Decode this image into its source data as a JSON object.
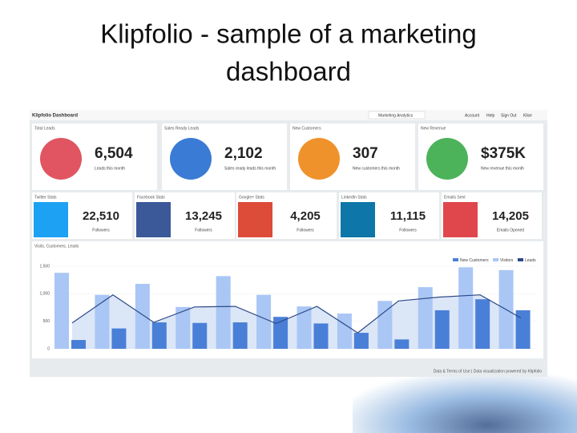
{
  "slide_title": [
    "Klipfolio - sample of a marketing",
    "dashboard"
  ],
  "topbar": {
    "logo": "Klipfolio Dashboard",
    "tab": "Marketing Analytics",
    "links": [
      "Account",
      "Help",
      "Sign Out",
      "Klise"
    ]
  },
  "kpis": [
    {
      "title": "Total Leads",
      "value": "6,504",
      "sub": "Leads this month"
    },
    {
      "title": "Sales Ready Leads",
      "value": "2,102",
      "sub": "Sales ready leads this month"
    },
    {
      "title": "New Customers",
      "value": "307",
      "sub": "New customers this month"
    },
    {
      "title": "New Revenue",
      "value": "$375K",
      "sub": "New revenue this month"
    }
  ],
  "socials": [
    {
      "title": "Twitter Stats",
      "value": "22,510",
      "sub": "Followers"
    },
    {
      "title": "Facebook Stats",
      "value": "13,245",
      "sub": "Followers"
    },
    {
      "title": "Google+ Stats",
      "value": "4,205",
      "sub": "Followers"
    },
    {
      "title": "LinkedIn Stats",
      "value": "11,115",
      "sub": "Followers"
    },
    {
      "title": "Emails Sent",
      "value": "14,205",
      "sub": "Emails Opened"
    }
  ],
  "chart": {
    "type": "bar",
    "title": "Visits, Customers, Leads",
    "ylim": [
      0,
      1500
    ],
    "yticks": [
      0,
      500,
      {
        "value": 1000,
        "label": "1,000"
      },
      {
        "value": 1500,
        "label": "1,500"
      }
    ],
    "series": [
      {
        "name": "New Customers",
        "color": "#4a7fd8",
        "values": [
          160,
          370,
          480,
          470,
          480,
          580,
          460,
          290,
          170,
          700,
          900,
          700
        ]
      },
      {
        "name": "Visitors",
        "color": "#a9c6f5",
        "values": [
          1380,
          980,
          1180,
          760,
          1320,
          980,
          770,
          640,
          870,
          1120,
          1480,
          1430
        ]
      },
      {
        "name": "Leads",
        "color": "#2c4a86",
        "values": [
          470,
          980,
          480,
          760,
          770,
          460,
          770,
          290,
          870,
          940,
          980,
          560
        ]
      }
    ]
  },
  "footer": "Data & Terms of Use | Data visualization powered by Klipfolio"
}
